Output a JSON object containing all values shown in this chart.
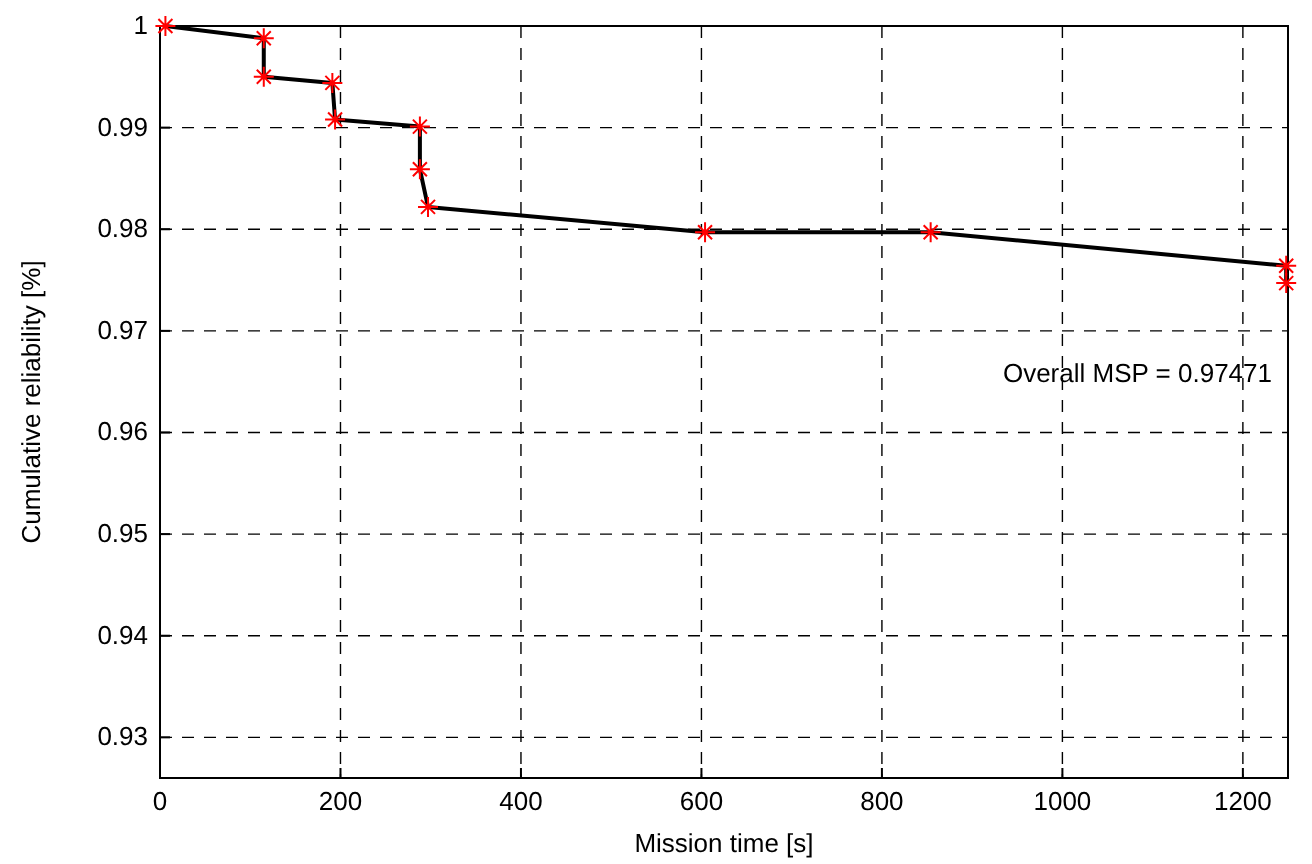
{
  "chart_data": {
    "type": "line",
    "xlabel": "Mission time [s]",
    "ylabel": "Cumulative reliability [%]",
    "x": [
      6,
      115,
      115,
      191,
      194,
      288,
      288,
      297,
      604,
      854,
      1248,
      1248
    ],
    "series": [
      {
        "color": "#000000",
        "marker": "none",
        "values": [
          1.0,
          0.9988,
          0.995,
          0.9944,
          0.9908,
          0.9901,
          0.9859,
          0.9822,
          0.9797,
          0.9797,
          0.9764,
          0.9747
        ]
      },
      {
        "type": "scatter",
        "color": "#ff0000",
        "marker": "cross",
        "values": [
          1.0,
          0.9988,
          0.995,
          0.9944,
          0.9908,
          0.9901,
          0.9859,
          0.9822,
          0.9797,
          0.9797,
          0.9764,
          0.9747
        ]
      }
    ],
    "xlim": [
      0,
      1250
    ],
    "xticks": [
      0,
      200,
      400,
      600,
      800,
      1000,
      1200
    ],
    "ylim": [
      0.926,
      1
    ],
    "yticks": [
      0.93,
      0.94,
      0.95,
      0.96,
      0.97,
      0.98,
      0.99,
      1
    ],
    "grid": true,
    "line_style": "solid",
    "annotations": [
      "Overall MSP = 0.97471"
    ]
  }
}
